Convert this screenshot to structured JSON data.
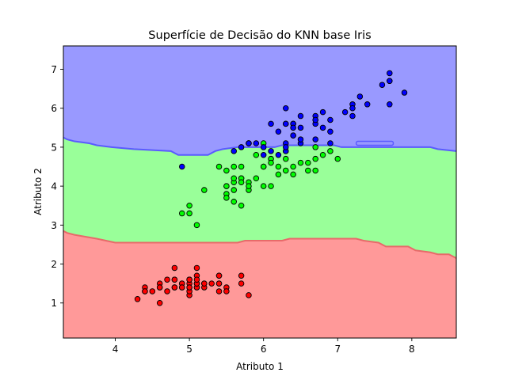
{
  "chart_data": {
    "type": "scatter",
    "title": "Superfície de Decisão do KNN base Iris",
    "xlabel": "Atributo 1",
    "ylabel": "Atributo 2",
    "xlim": [
      3.3,
      8.6
    ],
    "ylim": [
      0.1,
      7.6
    ],
    "xticks": [
      4,
      5,
      6,
      7,
      8
    ],
    "yticks": [
      1,
      2,
      3,
      4,
      5,
      6,
      7
    ],
    "grid": false,
    "legend": "none",
    "regions": [
      {
        "class": "red",
        "fill": "#ff9999",
        "edge": "#e86a6a"
      },
      {
        "class": "green",
        "fill": "#99ff99",
        "edge": "#66cc66"
      },
      {
        "class": "blue",
        "fill": "#9999ff",
        "edge": "#5a5aff"
      }
    ],
    "boundary_red_green": {
      "x": [
        3.3,
        3.35,
        3.4,
        3.65,
        3.75,
        3.85,
        8.6
      ],
      "y": [
        2.85,
        2.8,
        2.75,
        2.7,
        2.65,
        2.6,
        2.6
      ]
    },
    "boundary_green_blue": {
      "x": [
        3.3,
        3.35,
        3.4,
        3.65,
        3.75,
        4.15,
        4.25,
        4.75,
        4.85,
        5.15,
        5.25,
        5.45,
        5.55,
        6.05,
        6.15,
        8.15,
        8.25,
        8.6
      ],
      "y": [
        5.25,
        5.2,
        5.15,
        5.1,
        5.05,
        5.0,
        4.95,
        4.85,
        4.8,
        4.8,
        4.85,
        4.9,
        4.95,
        5.0,
        5.05,
        5.0,
        4.95,
        4.9
      ]
    },
    "red_green_steps": [
      [
        3.3,
        2.85
      ],
      [
        3.35,
        2.8
      ],
      [
        3.45,
        2.75
      ],
      [
        3.75,
        2.65
      ],
      [
        4.0,
        2.55
      ],
      [
        5.65,
        2.55
      ],
      [
        5.75,
        2.6
      ],
      [
        6.25,
        2.6
      ],
      [
        6.35,
        2.65
      ],
      [
        7.25,
        2.65
      ],
      [
        7.35,
        2.6
      ],
      [
        7.55,
        2.55
      ],
      [
        7.65,
        2.45
      ],
      [
        7.95,
        2.45
      ],
      [
        8.05,
        2.35
      ],
      [
        8.25,
        2.3
      ],
      [
        8.35,
        2.25
      ],
      [
        8.5,
        2.25
      ],
      [
        8.6,
        2.15
      ]
    ],
    "green_blue_steps": [
      [
        3.3,
        5.25
      ],
      [
        3.35,
        5.2
      ],
      [
        3.45,
        5.15
      ],
      [
        3.65,
        5.1
      ],
      [
        3.75,
        5.05
      ],
      [
        3.95,
        5.0
      ],
      [
        4.25,
        4.95
      ],
      [
        4.75,
        4.9
      ],
      [
        4.85,
        4.8
      ],
      [
        5.25,
        4.8
      ],
      [
        5.35,
        4.9
      ],
      [
        5.45,
        4.95
      ],
      [
        5.65,
        5.0
      ],
      [
        6.15,
        5.0
      ],
      [
        6.25,
        5.05
      ],
      [
        6.95,
        5.05
      ],
      [
        7.05,
        5.0
      ],
      [
        8.25,
        5.0
      ],
      [
        8.35,
        4.95
      ],
      [
        8.6,
        4.9
      ]
    ],
    "island": {
      "class": "blue",
      "x": [
        7.25,
        7.75
      ],
      "y": [
        5.05,
        5.15
      ]
    },
    "series": [
      {
        "class": "red",
        "color": "#ff0000",
        "points": [
          [
            5.1,
            1.4
          ],
          [
            4.9,
            1.4
          ],
          [
            4.7,
            1.3
          ],
          [
            4.6,
            1.5
          ],
          [
            5.0,
            1.4
          ],
          [
            5.4,
            1.7
          ],
          [
            4.6,
            1.4
          ],
          [
            5.0,
            1.5
          ],
          [
            4.4,
            1.4
          ],
          [
            4.9,
            1.5
          ],
          [
            5.4,
            1.5
          ],
          [
            4.8,
            1.6
          ],
          [
            4.8,
            1.4
          ],
          [
            4.3,
            1.1
          ],
          [
            5.8,
            1.2
          ],
          [
            5.7,
            1.5
          ],
          [
            5.4,
            1.3
          ],
          [
            5.1,
            1.4
          ],
          [
            5.7,
            1.7
          ],
          [
            5.1,
            1.5
          ],
          [
            5.4,
            1.7
          ],
          [
            5.1,
            1.5
          ],
          [
            4.6,
            1.0
          ],
          [
            5.1,
            1.7
          ],
          [
            4.8,
            1.9
          ],
          [
            5.0,
            1.6
          ],
          [
            5.0,
            1.6
          ],
          [
            5.2,
            1.5
          ],
          [
            5.2,
            1.4
          ],
          [
            4.7,
            1.6
          ],
          [
            4.8,
            1.6
          ],
          [
            5.4,
            1.5
          ],
          [
            5.2,
            1.5
          ],
          [
            5.5,
            1.4
          ],
          [
            4.9,
            1.5
          ],
          [
            5.0,
            1.2
          ],
          [
            5.5,
            1.3
          ],
          [
            4.9,
            1.4
          ],
          [
            4.4,
            1.3
          ],
          [
            5.1,
            1.5
          ],
          [
            5.0,
            1.3
          ],
          [
            4.5,
            1.3
          ],
          [
            4.4,
            1.3
          ],
          [
            5.0,
            1.6
          ],
          [
            5.1,
            1.9
          ],
          [
            4.8,
            1.4
          ],
          [
            5.1,
            1.6
          ],
          [
            4.6,
            1.4
          ],
          [
            5.3,
            1.5
          ],
          [
            5.0,
            1.4
          ]
        ]
      },
      {
        "class": "green",
        "color": "#00ff00",
        "points": [
          [
            7.0,
            4.7
          ],
          [
            6.4,
            4.5
          ],
          [
            6.9,
            4.9
          ],
          [
            5.5,
            4.0
          ],
          [
            6.5,
            4.6
          ],
          [
            5.7,
            4.5
          ],
          [
            6.3,
            4.7
          ],
          [
            4.9,
            3.3
          ],
          [
            6.6,
            4.6
          ],
          [
            5.2,
            3.9
          ],
          [
            5.0,
            3.5
          ],
          [
            5.9,
            4.2
          ],
          [
            6.0,
            4.0
          ],
          [
            6.1,
            4.7
          ],
          [
            5.6,
            3.6
          ],
          [
            6.7,
            4.4
          ],
          [
            5.6,
            4.5
          ],
          [
            5.8,
            4.1
          ],
          [
            6.2,
            4.5
          ],
          [
            5.6,
            3.9
          ],
          [
            5.9,
            4.8
          ],
          [
            6.1,
            4.0
          ],
          [
            6.3,
            4.9
          ],
          [
            6.1,
            4.7
          ],
          [
            6.4,
            4.3
          ],
          [
            6.6,
            4.4
          ],
          [
            6.8,
            4.8
          ],
          [
            6.7,
            5.0
          ],
          [
            6.0,
            4.5
          ],
          [
            5.7,
            3.5
          ],
          [
            5.5,
            3.8
          ],
          [
            5.5,
            3.7
          ],
          [
            5.8,
            3.9
          ],
          [
            6.0,
            5.1
          ],
          [
            5.4,
            4.5
          ],
          [
            6.0,
            4.5
          ],
          [
            6.7,
            4.7
          ],
          [
            6.3,
            4.4
          ],
          [
            5.6,
            4.1
          ],
          [
            5.5,
            4.0
          ],
          [
            5.5,
            4.4
          ],
          [
            6.1,
            4.6
          ],
          [
            5.8,
            4.0
          ],
          [
            5.0,
            3.3
          ],
          [
            5.6,
            4.2
          ],
          [
            5.7,
            4.2
          ],
          [
            5.7,
            4.2
          ],
          [
            6.2,
            4.3
          ],
          [
            5.1,
            3.0
          ],
          [
            5.7,
            4.1
          ]
        ]
      },
      {
        "class": "blue",
        "color": "#0000ff",
        "points": [
          [
            6.3,
            6.0
          ],
          [
            5.8,
            5.1
          ],
          [
            7.1,
            5.9
          ],
          [
            6.3,
            5.6
          ],
          [
            6.5,
            5.8
          ],
          [
            7.6,
            6.6
          ],
          [
            4.9,
            4.5
          ],
          [
            7.3,
            6.3
          ],
          [
            6.7,
            5.8
          ],
          [
            7.2,
            6.1
          ],
          [
            6.5,
            5.1
          ],
          [
            6.4,
            5.3
          ],
          [
            6.8,
            5.5
          ],
          [
            5.7,
            5.0
          ],
          [
            5.8,
            5.1
          ],
          [
            6.4,
            5.3
          ],
          [
            6.5,
            5.5
          ],
          [
            7.7,
            6.7
          ],
          [
            7.7,
            6.9
          ],
          [
            6.0,
            5.0
          ],
          [
            6.9,
            5.7
          ],
          [
            5.6,
            4.9
          ],
          [
            7.7,
            6.7
          ],
          [
            6.3,
            4.9
          ],
          [
            6.7,
            5.7
          ],
          [
            7.2,
            6.0
          ],
          [
            6.2,
            4.8
          ],
          [
            6.1,
            4.9
          ],
          [
            6.4,
            5.6
          ],
          [
            7.2,
            5.8
          ],
          [
            7.4,
            6.1
          ],
          [
            7.9,
            6.4
          ],
          [
            6.4,
            5.6
          ],
          [
            6.3,
            5.1
          ],
          [
            6.1,
            5.6
          ],
          [
            7.7,
            6.1
          ],
          [
            6.3,
            5.6
          ],
          [
            6.4,
            5.5
          ],
          [
            6.0,
            4.8
          ],
          [
            6.9,
            5.4
          ],
          [
            6.7,
            5.6
          ],
          [
            6.9,
            5.1
          ],
          [
            5.8,
            5.1
          ],
          [
            6.8,
            5.9
          ],
          [
            6.7,
            5.7
          ],
          [
            6.7,
            5.2
          ],
          [
            6.3,
            5.0
          ],
          [
            6.5,
            5.2
          ],
          [
            6.2,
            5.4
          ],
          [
            5.9,
            5.1
          ]
        ]
      }
    ]
  }
}
